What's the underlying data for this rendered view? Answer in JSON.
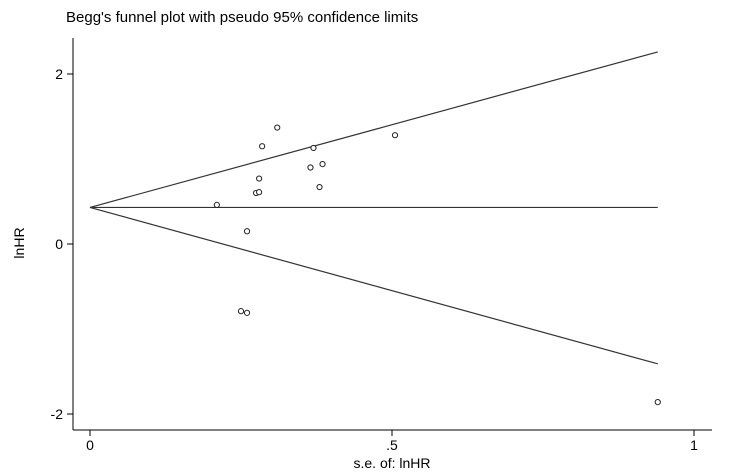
{
  "chart_data": {
    "type": "scatter",
    "title": "Begg's funnel plot with pseudo 95% confidence limits",
    "xlabel": "s.e. of: lnHR",
    "ylabel": "lnHR",
    "xlim": [
      0,
      1
    ],
    "ylim": [
      -2,
      2
    ],
    "x_ticks": [
      0,
      0.5,
      1
    ],
    "x_tick_labels": [
      "0",
      ".5",
      "1"
    ],
    "y_ticks": [
      2,
      0,
      -2
    ],
    "y_tick_labels": [
      "2",
      "0",
      "-2"
    ],
    "pooled_estimate": 0.43,
    "funnel_max_se": 0.94,
    "funnel_upper_at_max_se": 2.26,
    "funnel_lower_at_max_se": -1.41,
    "points": [
      {
        "x": 0.21,
        "y": 0.46
      },
      {
        "x": 0.25,
        "y": -0.79
      },
      {
        "x": 0.26,
        "y": -0.81
      },
      {
        "x": 0.26,
        "y": 0.15
      },
      {
        "x": 0.275,
        "y": 0.6
      },
      {
        "x": 0.28,
        "y": 0.61
      },
      {
        "x": 0.28,
        "y": 0.77
      },
      {
        "x": 0.285,
        "y": 1.15
      },
      {
        "x": 0.31,
        "y": 1.37
      },
      {
        "x": 0.365,
        "y": 0.9
      },
      {
        "x": 0.37,
        "y": 1.13
      },
      {
        "x": 0.38,
        "y": 0.67
      },
      {
        "x": 0.385,
        "y": 0.94
      },
      {
        "x": 0.505,
        "y": 1.28
      },
      {
        "x": 0.94,
        "y": -1.86
      }
    ],
    "grid": false,
    "legend": "none"
  }
}
